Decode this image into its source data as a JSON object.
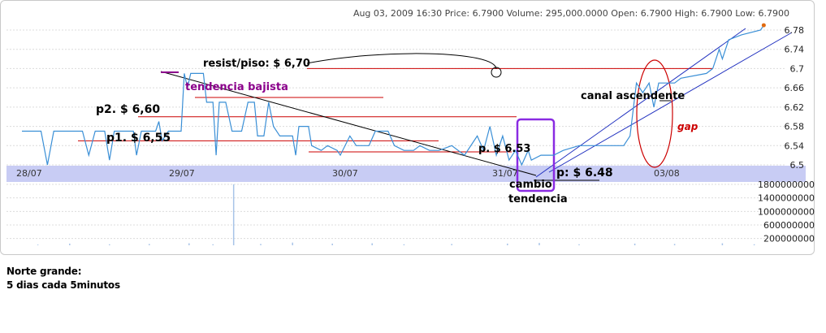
{
  "info_line": "Aug 03, 2009 16:30 Price: 6.7900 Volume: 295,000.0000 Open: 6.7900 High: 6.7900 Low: 6.7900",
  "caption": {
    "line1": "Norte grande:",
    "line2": "5 dias cada 5minutos"
  },
  "colors": {
    "price_line": "#3a8fd6",
    "date_band": "#c8ccf4",
    "grid": "#dcdcdc",
    "red_levels": "#cc0000",
    "channel": "#1f2fbf",
    "purple_box": "#8a2be2",
    "magenta_text": "#8b008b",
    "volume_bar": "#a8c4e8"
  },
  "chart_data": {
    "type": "line",
    "x_labels": [
      "28/07",
      "29/07",
      "30/07",
      "31/07",
      "03/08"
    ],
    "y_ticks": [
      6.5,
      6.54,
      6.58,
      6.62,
      6.66,
      6.7,
      6.74,
      6.78
    ],
    "ylim": [
      6.49,
      6.79
    ],
    "volume_ticks": [
      "1800000000",
      "1400000000",
      "1000000000",
      "600000000",
      "200000000"
    ],
    "volume_lim": [
      0,
      2000000000
    ],
    "series": [
      {
        "values": [
          [
            0,
            6.57
          ],
          [
            0.12,
            6.57
          ],
          [
            0.16,
            6.5
          ],
          [
            0.2,
            6.57
          ],
          [
            0.38,
            6.57
          ],
          [
            0.42,
            6.52
          ],
          [
            0.46,
            6.57
          ],
          [
            0.52,
            6.57
          ],
          [
            0.55,
            6.51
          ],
          [
            0.58,
            6.57
          ],
          [
            0.7,
            6.57
          ],
          [
            0.72,
            6.52
          ],
          [
            0.75,
            6.57
          ],
          [
            0.84,
            6.57
          ],
          [
            0.86,
            6.59
          ],
          [
            0.88,
            6.55
          ],
          [
            0.92,
            6.57
          ],
          [
            1.0,
            6.57
          ],
          [
            1.02,
            6.69
          ],
          [
            1.04,
            6.66
          ],
          [
            1.06,
            6.69
          ],
          [
            1.14,
            6.69
          ],
          [
            1.16,
            6.63
          ],
          [
            1.2,
            6.63
          ],
          [
            1.22,
            6.52
          ],
          [
            1.24,
            6.63
          ],
          [
            1.28,
            6.63
          ],
          [
            1.32,
            6.57
          ],
          [
            1.38,
            6.57
          ],
          [
            1.42,
            6.63
          ],
          [
            1.46,
            6.63
          ],
          [
            1.48,
            6.56
          ],
          [
            1.52,
            6.56
          ],
          [
            1.55,
            6.63
          ],
          [
            1.58,
            6.58
          ],
          [
            1.62,
            6.56
          ],
          [
            1.7,
            6.56
          ],
          [
            1.72,
            6.52
          ],
          [
            1.74,
            6.58
          ],
          [
            1.8,
            6.58
          ],
          [
            1.82,
            6.54
          ],
          [
            1.88,
            6.53
          ],
          [
            1.92,
            6.54
          ],
          [
            1.98,
            6.53
          ],
          [
            2.0,
            6.52
          ],
          [
            2.06,
            6.56
          ],
          [
            2.1,
            6.54
          ],
          [
            2.18,
            6.54
          ],
          [
            2.22,
            6.57
          ],
          [
            2.3,
            6.57
          ],
          [
            2.34,
            6.54
          ],
          [
            2.4,
            6.53
          ],
          [
            2.46,
            6.53
          ],
          [
            2.5,
            6.54
          ],
          [
            2.56,
            6.53
          ],
          [
            2.62,
            6.53
          ],
          [
            2.7,
            6.54
          ],
          [
            2.78,
            6.52
          ],
          [
            2.86,
            6.56
          ],
          [
            2.9,
            6.53
          ],
          [
            2.94,
            6.58
          ],
          [
            2.98,
            6.52
          ],
          [
            3.02,
            6.56
          ],
          [
            3.06,
            6.51
          ],
          [
            3.1,
            6.53
          ],
          [
            3.14,
            6.5
          ],
          [
            3.18,
            6.53
          ],
          [
            3.2,
            6.51
          ],
          [
            3.26,
            6.52
          ],
          [
            3.34,
            6.52
          ],
          [
            3.4,
            6.53
          ],
          [
            3.5,
            6.54
          ],
          [
            3.6,
            6.54
          ],
          [
            3.7,
            6.54
          ],
          [
            3.78,
            6.54
          ],
          [
            3.82,
            6.56
          ],
          [
            3.86,
            6.67
          ],
          [
            3.9,
            6.65
          ],
          [
            3.94,
            6.67
          ],
          [
            3.97,
            6.62
          ],
          [
            4.0,
            6.67
          ],
          [
            4.1,
            6.67
          ],
          [
            4.14,
            6.68
          ],
          [
            4.3,
            6.69
          ],
          [
            4.34,
            6.7
          ],
          [
            4.38,
            6.74
          ],
          [
            4.4,
            6.72
          ],
          [
            4.44,
            6.76
          ],
          [
            4.52,
            6.77
          ],
          [
            4.64,
            6.78
          ],
          [
            4.66,
            6.79
          ]
        ]
      }
    ]
  },
  "annotations": {
    "resist": "resist/piso: $ 6,70",
    "tendencia_bajista": "tendencia bajista",
    "p2": "p2. $ 6,60",
    "p1": "p1. $ 6,55",
    "p_653": "p. $ 6.53",
    "p_648": "p: $ 6.48",
    "cambio": "cambio",
    "tendencia": "tendencia",
    "canal": "canal ascendente",
    "gap": "gap"
  }
}
